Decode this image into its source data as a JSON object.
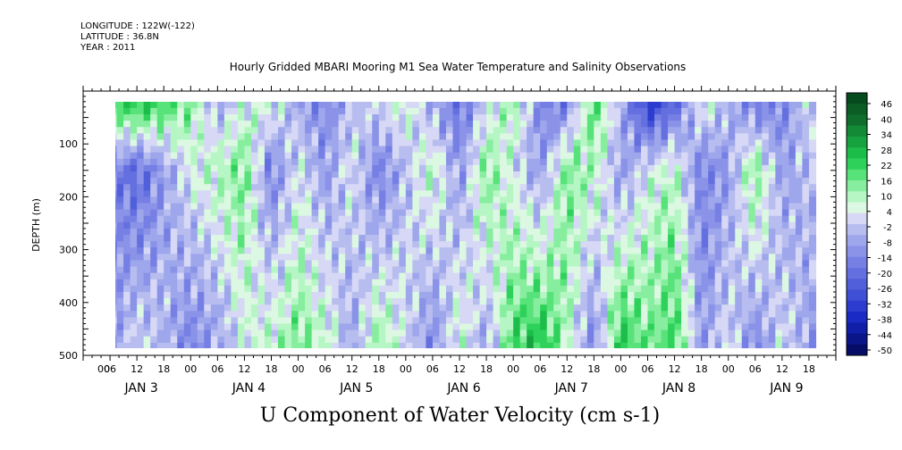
{
  "meta": {
    "longitude": "LONGITUDE : 122W(-122)",
    "latitude": "LATITUDE : 36.8N",
    "year": "YEAR : 2011"
  },
  "chart_data": {
    "type": "heatmap",
    "title": "Hourly Gridded MBARI Mooring M1 Sea Water Temperature and Salinity Observations",
    "xlabel": "U Component of Water Velocity (cm s-1)",
    "ylabel": "DEPTH (m)",
    "ylim": [
      500,
      0
    ],
    "y_ticks": [
      100,
      200,
      300,
      400,
      500
    ],
    "x_hour_ticks": [
      "00",
      "06",
      "12",
      "18",
      "00",
      "06",
      "12",
      "18",
      "00",
      "06",
      "12",
      "18",
      "00",
      "06",
      "12",
      "18",
      "00",
      "06",
      "12",
      "18",
      "00",
      "06",
      "12",
      "18",
      "00",
      "06",
      "12",
      "18"
    ],
    "x_day_labels": [
      "JAN  3",
      "JAN  4",
      "JAN  5",
      "JAN  6",
      "JAN  7",
      "JAN  8",
      "JAN  9"
    ],
    "colorbar_labels": [
      "46",
      "40",
      "34",
      "28",
      "22",
      "16",
      "10",
      "4",
      "-2",
      "-8",
      "-14",
      "-20",
      "-26",
      "-32",
      "-38",
      "-44",
      "-50"
    ],
    "colorbar_colors": [
      "#064a1d",
      "#0b5c25",
      "#0f6e2c",
      "#128a36",
      "#16a23f",
      "#1cbd49",
      "#2ed25a",
      "#58e27a",
      "#88ee9f",
      "#b6f6c4",
      "#dcf8e2",
      "#d6d8f5",
      "#b8bdf0",
      "#9ea6ec",
      "#8a93e8",
      "#7680e4",
      "#6470df",
      "#525fda",
      "#3f4fd6",
      "#2b3ccf",
      "#1a2ac4",
      "#101fa8",
      "#0a1588",
      "#050d66"
    ],
    "data_extent": {
      "depth_min": 20,
      "depth_max": 485,
      "hours_start": 6,
      "hours_end": 163
    },
    "columns": [
      {
        "h": 6,
        "surface": 28,
        "mid": -14,
        "deep": -8
      },
      {
        "h": 12,
        "surface": 34,
        "mid": -20,
        "deep": 4
      },
      {
        "h": 18,
        "surface": 28,
        "mid": -8,
        "deep": -2
      },
      {
        "h": 24,
        "surface": 16,
        "mid": 4,
        "deep": -14
      },
      {
        "h": 30,
        "surface": -8,
        "mid": 10,
        "deep": -8
      },
      {
        "h": 36,
        "surface": 4,
        "mid": 16,
        "deep": 4
      },
      {
        "h": 42,
        "surface": 10,
        "mid": -14,
        "deep": 10
      },
      {
        "h": 48,
        "surface": -8,
        "mid": 4,
        "deep": 16
      },
      {
        "h": 54,
        "surface": -14,
        "mid": -8,
        "deep": 10
      },
      {
        "h": 60,
        "surface": -2,
        "mid": 4,
        "deep": -8
      },
      {
        "h": 66,
        "surface": 4,
        "mid": -14,
        "deep": 16
      },
      {
        "h": 72,
        "surface": 10,
        "mid": -2,
        "deep": 4
      },
      {
        "h": 78,
        "surface": -8,
        "mid": 10,
        "deep": -14
      },
      {
        "h": 84,
        "surface": -20,
        "mid": -8,
        "deep": 10
      },
      {
        "h": 90,
        "surface": -2,
        "mid": 16,
        "deep": -8
      },
      {
        "h": 96,
        "surface": 16,
        "mid": 4,
        "deep": 22
      },
      {
        "h": 102,
        "surface": -14,
        "mid": -8,
        "deep": 28
      },
      {
        "h": 108,
        "surface": -20,
        "mid": 16,
        "deep": 10
      },
      {
        "h": 114,
        "surface": 22,
        "mid": 10,
        "deep": -14
      },
      {
        "h": 120,
        "surface": -2,
        "mid": -8,
        "deep": 28
      },
      {
        "h": 126,
        "surface": -38,
        "mid": 4,
        "deep": 16
      },
      {
        "h": 132,
        "surface": -26,
        "mid": 10,
        "deep": 22
      },
      {
        "h": 138,
        "surface": 10,
        "mid": -14,
        "deep": -8
      },
      {
        "h": 144,
        "surface": -2,
        "mid": -8,
        "deep": 4
      },
      {
        "h": 150,
        "surface": -20,
        "mid": 16,
        "deep": -14
      },
      {
        "h": 156,
        "surface": -14,
        "mid": -8,
        "deep": 4
      },
      {
        "h": 162,
        "surface": 4,
        "mid": -2,
        "deep": -8
      }
    ]
  }
}
